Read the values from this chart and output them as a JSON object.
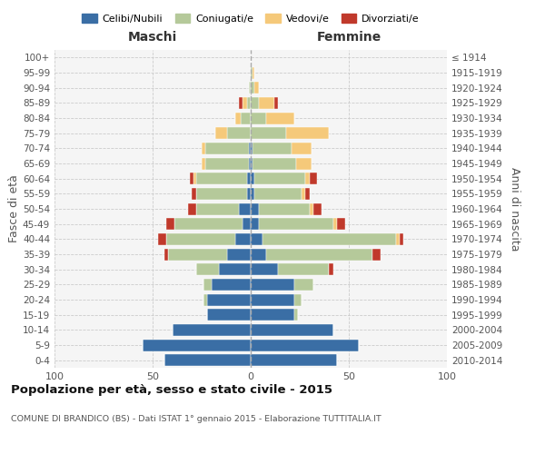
{
  "age_groups": [
    "0-4",
    "5-9",
    "10-14",
    "15-19",
    "20-24",
    "25-29",
    "30-34",
    "35-39",
    "40-44",
    "45-49",
    "50-54",
    "55-59",
    "60-64",
    "65-69",
    "70-74",
    "75-79",
    "80-84",
    "85-89",
    "90-94",
    "95-99",
    "100+"
  ],
  "birth_years": [
    "2010-2014",
    "2005-2009",
    "2000-2004",
    "1995-1999",
    "1990-1994",
    "1985-1989",
    "1980-1984",
    "1975-1979",
    "1970-1974",
    "1965-1969",
    "1960-1964",
    "1955-1959",
    "1950-1954",
    "1945-1949",
    "1940-1944",
    "1935-1939",
    "1930-1934",
    "1925-1929",
    "1920-1924",
    "1915-1919",
    "≤ 1914"
  ],
  "males": {
    "celibi": [
      44,
      55,
      40,
      22,
      22,
      20,
      16,
      12,
      8,
      4,
      6,
      2,
      2,
      1,
      1,
      0,
      0,
      0,
      0,
      0,
      0
    ],
    "coniugati": [
      0,
      0,
      0,
      0,
      2,
      4,
      12,
      30,
      35,
      35,
      22,
      26,
      26,
      22,
      22,
      12,
      5,
      2,
      1,
      0,
      0
    ],
    "vedovi": [
      0,
      0,
      0,
      0,
      0,
      0,
      0,
      0,
      0,
      0,
      0,
      0,
      1,
      2,
      2,
      6,
      3,
      2,
      0,
      0,
      0
    ],
    "divorziati": [
      0,
      0,
      0,
      0,
      0,
      0,
      0,
      2,
      4,
      4,
      4,
      2,
      2,
      0,
      0,
      0,
      0,
      2,
      0,
      0,
      0
    ]
  },
  "females": {
    "nubili": [
      44,
      55,
      42,
      22,
      22,
      22,
      14,
      8,
      6,
      4,
      4,
      2,
      2,
      1,
      1,
      0,
      0,
      0,
      0,
      0,
      0
    ],
    "coniugate": [
      0,
      0,
      0,
      2,
      4,
      10,
      26,
      54,
      68,
      38,
      26,
      24,
      26,
      22,
      20,
      18,
      8,
      4,
      2,
      1,
      0
    ],
    "vedove": [
      0,
      0,
      0,
      0,
      0,
      0,
      0,
      0,
      2,
      2,
      2,
      2,
      2,
      8,
      10,
      22,
      14,
      8,
      2,
      1,
      0
    ],
    "divorziate": [
      0,
      0,
      0,
      0,
      0,
      0,
      2,
      4,
      2,
      4,
      4,
      2,
      4,
      0,
      0,
      0,
      0,
      2,
      0,
      0,
      0
    ]
  },
  "colors": {
    "celibi": "#3A6EA5",
    "coniugati": "#B5C99A",
    "vedovi": "#F5C97A",
    "divorziati": "#C0392B"
  },
  "xlim": 100,
  "title": "Popolazione per età, sesso e stato civile - 2015",
  "subtitle": "COMUNE DI BRANDICO (BS) - Dati ISTAT 1° gennaio 2015 - Elaborazione TUTTITALIA.IT",
  "ylabel_left": "Fasce di età",
  "ylabel_right": "Anni di nascita",
  "xlabel_left": "Maschi",
  "xlabel_right": "Femmine",
  "legend_labels": [
    "Celibi/Nubili",
    "Coniugati/e",
    "Vedovi/e",
    "Divorziati/e"
  ],
  "background_color": "#ffffff",
  "plot_bg_color": "#f5f5f5"
}
